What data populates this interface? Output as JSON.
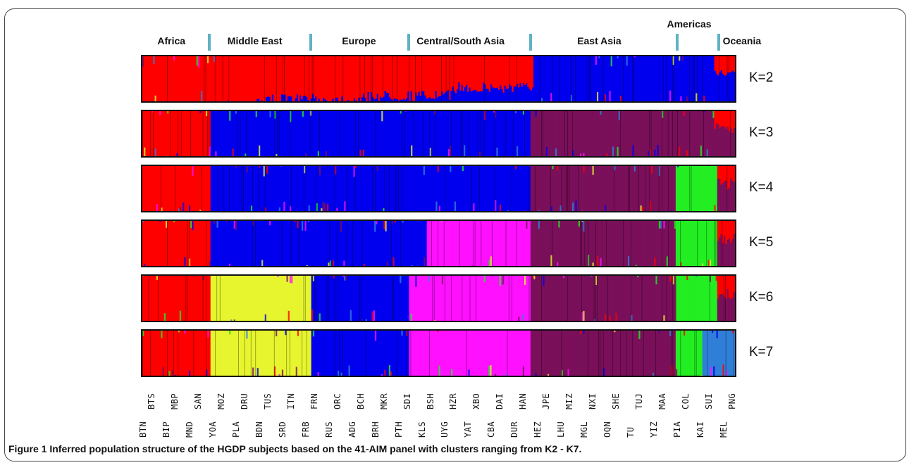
{
  "chart_data": {
    "type": "stacked-bar",
    "description_source": "admixture bar plot",
    "regions": [
      {
        "name": "Africa",
        "start": 0.0,
        "end": 0.115
      },
      {
        "name": "Middle East",
        "start": 0.115,
        "end": 0.285
      },
      {
        "name": "Europe",
        "start": 0.285,
        "end": 0.45
      },
      {
        "name": "Central/South Asia",
        "start": 0.45,
        "end": 0.655
      },
      {
        "name": "East Asia",
        "start": 0.655,
        "end": 0.9
      },
      {
        "name": "Americas",
        "start": 0.9,
        "end": 0.97
      },
      {
        "name": "Oceania",
        "start": 0.97,
        "end": 1.0
      }
    ],
    "k_values": [
      "K=2",
      "K=3",
      "K=4",
      "K=5",
      "K=6",
      "K=7"
    ],
    "populations_top": [
      "BTS",
      "MBP",
      "SAN",
      "MOZ",
      "DRU",
      "TUS",
      "ITN",
      "FRN",
      "ORC",
      "BCH",
      "MKR",
      "SDI",
      "BSH",
      "HZR",
      "XBO",
      "DAI",
      "HAN",
      "JPE",
      "MIZ",
      "NXI",
      "SHE",
      "TUJ",
      "MAA",
      "COL",
      "SUI",
      "PNG"
    ],
    "populations_bottom": [
      "BTN",
      "BIP",
      "MND",
      "YOA",
      "PLA",
      "BDN",
      "SRD",
      "FRB",
      "RUS",
      "ADG",
      "BRH",
      "PTH",
      "KLS",
      "UYG",
      "YAT",
      "CBA",
      "DUR",
      "HEZ",
      "LHU",
      "MGL",
      "OQN",
      "TU",
      "YIZ",
      "PIA",
      "KAI",
      "MEL"
    ],
    "cluster_colors": {
      "red": "#ff0000",
      "blue": "#0000ee",
      "purple": "#7a0f5a",
      "green": "#22ee22",
      "magenta": "#ff10ff",
      "yellow": "#e6f52e",
      "lightblue": "#2f7fd8"
    },
    "bands": [
      {
        "k": "K=2",
        "segments": [
          {
            "end": 0.19,
            "colors": [
              "red"
            ]
          },
          {
            "end": 0.38,
            "colors": [
              "red",
              "blue"
            ],
            "mix": [
              0.96,
              0.04
            ]
          },
          {
            "end": 0.52,
            "colors": [
              "red",
              "blue"
            ],
            "mix": [
              0.88,
              0.12
            ]
          },
          {
            "end": 0.66,
            "colors": [
              "red",
              "blue"
            ],
            "mix": [
              0.7,
              0.3
            ]
          },
          {
            "end": 0.965,
            "colors": [
              "blue"
            ]
          },
          {
            "end": 1.0,
            "colors": [
              "red",
              "blue"
            ],
            "mix": [
              0.35,
              0.65
            ]
          }
        ]
      },
      {
        "k": "K=3",
        "segments": [
          {
            "end": 0.115,
            "colors": [
              "red"
            ]
          },
          {
            "end": 0.655,
            "colors": [
              "blue"
            ]
          },
          {
            "end": 0.965,
            "colors": [
              "purple"
            ]
          },
          {
            "end": 1.0,
            "colors": [
              "red",
              "purple"
            ],
            "mix": [
              0.4,
              0.6
            ]
          }
        ]
      },
      {
        "k": "K=4",
        "segments": [
          {
            "end": 0.115,
            "colors": [
              "red"
            ]
          },
          {
            "end": 0.655,
            "colors": [
              "blue"
            ]
          },
          {
            "end": 0.9,
            "colors": [
              "purple"
            ]
          },
          {
            "end": 0.97,
            "colors": [
              "green"
            ]
          },
          {
            "end": 1.0,
            "colors": [
              "red",
              "purple"
            ],
            "mix": [
              0.4,
              0.6
            ]
          }
        ]
      },
      {
        "k": "K=5",
        "segments": [
          {
            "end": 0.115,
            "colors": [
              "red"
            ]
          },
          {
            "end": 0.48,
            "colors": [
              "blue"
            ]
          },
          {
            "end": 0.655,
            "colors": [
              "magenta"
            ]
          },
          {
            "end": 0.9,
            "colors": [
              "purple"
            ]
          },
          {
            "end": 0.97,
            "colors": [
              "green"
            ]
          },
          {
            "end": 1.0,
            "colors": [
              "red",
              "purple"
            ],
            "mix": [
              0.4,
              0.6
            ]
          }
        ]
      },
      {
        "k": "K=6",
        "segments": [
          {
            "end": 0.115,
            "colors": [
              "red"
            ]
          },
          {
            "end": 0.285,
            "colors": [
              "yellow"
            ]
          },
          {
            "end": 0.45,
            "colors": [
              "blue"
            ]
          },
          {
            "end": 0.655,
            "colors": [
              "magenta"
            ]
          },
          {
            "end": 0.9,
            "colors": [
              "purple"
            ]
          },
          {
            "end": 0.97,
            "colors": [
              "green"
            ]
          },
          {
            "end": 1.0,
            "colors": [
              "red",
              "purple"
            ],
            "mix": [
              0.4,
              0.6
            ]
          }
        ]
      },
      {
        "k": "K=7",
        "segments": [
          {
            "end": 0.115,
            "colors": [
              "red"
            ]
          },
          {
            "end": 0.285,
            "colors": [
              "yellow"
            ]
          },
          {
            "end": 0.45,
            "colors": [
              "blue"
            ]
          },
          {
            "end": 0.655,
            "colors": [
              "magenta"
            ]
          },
          {
            "end": 0.9,
            "colors": [
              "purple"
            ]
          },
          {
            "end": 0.945,
            "colors": [
              "green"
            ]
          },
          {
            "end": 1.0,
            "colors": [
              "lightblue"
            ]
          }
        ]
      }
    ]
  },
  "caption": {
    "label": "Figure 1",
    "text": "Inferred population structure of the HGDP subjects based on the 41-AIM panel with clusters ranging from K2 - K7."
  }
}
